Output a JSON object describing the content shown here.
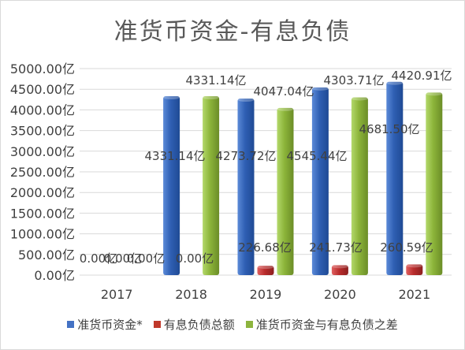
{
  "chart_data": {
    "type": "bar",
    "title": "准货币资金-有息负债",
    "categories": [
      "2017",
      "2018",
      "2019",
      "2020",
      "2021"
    ],
    "ylim": [
      0,
      5000
    ],
    "yticks": [
      "0.00亿",
      "500.00亿",
      "1000.00亿",
      "1500.00亿",
      "2000.00亿",
      "2500.00亿",
      "3000.00亿",
      "3500.00亿",
      "4000.00亿",
      "4500.00亿",
      "5000.00亿"
    ],
    "grid": true,
    "legend_position": "bottom",
    "series": [
      {
        "name": "准货币资金*",
        "color": "#4472c4",
        "values": [
          0,
          4331.14,
          4273.72,
          4545.44,
          4681.5
        ],
        "labels": [
          "0.00亿",
          "4331.14亿",
          "4273.72亿",
          "4545.44亿",
          "4681.50亿"
        ]
      },
      {
        "name": "有息负债总额",
        "color": "#c0392b",
        "values": [
          0,
          0,
          226.68,
          241.73,
          260.59
        ],
        "labels": [
          "0.00亿",
          "0.00亿",
          "226.68亿",
          "241.73亿",
          "260.59亿"
        ]
      },
      {
        "name": "准货币资金与有息负债之差",
        "color": "#8db43e",
        "values": [
          0,
          4331.14,
          4047.04,
          4303.71,
          4420.91
        ],
        "labels": [
          "0.00亿",
          "4331.14亿",
          "4047.04亿",
          "4303.71亿",
          "4420.91亿"
        ]
      }
    ]
  }
}
